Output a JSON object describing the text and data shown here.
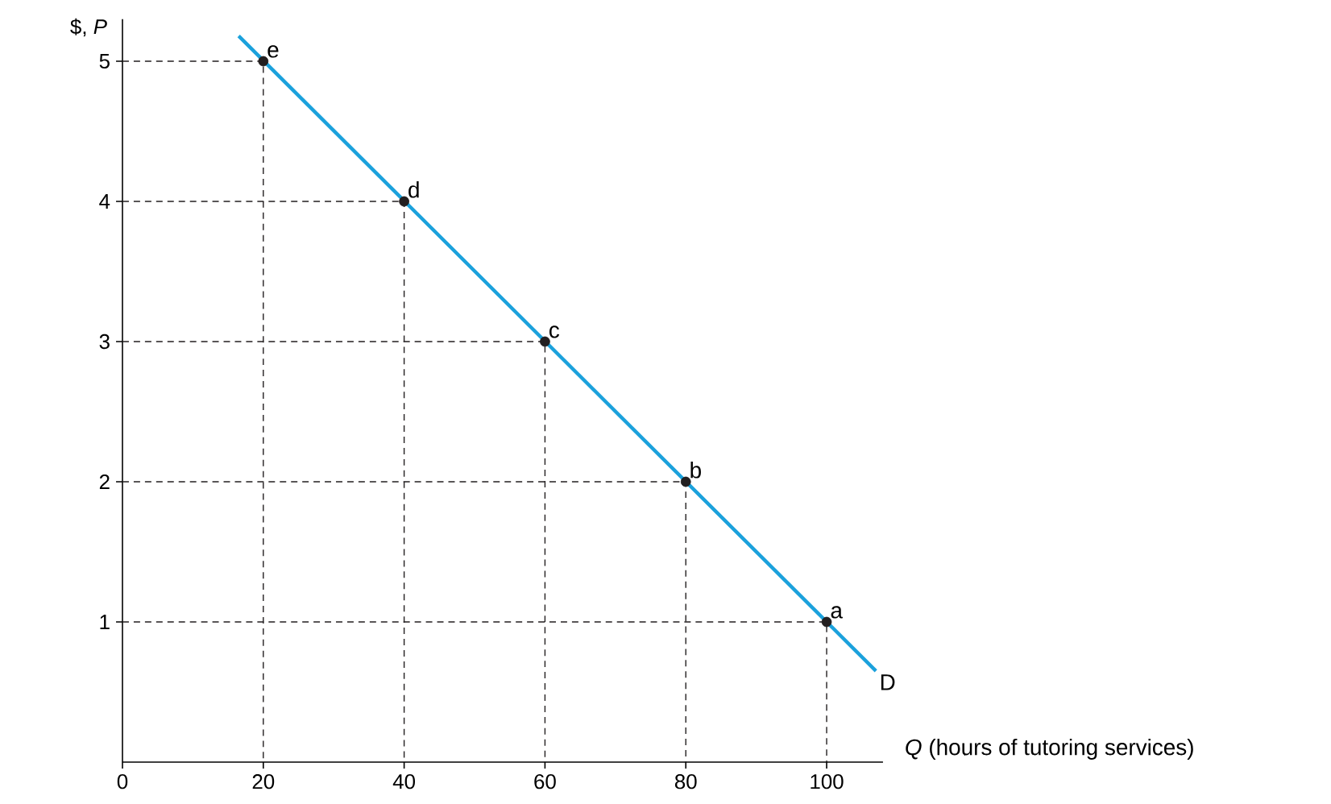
{
  "chart_data": {
    "type": "line",
    "xlabel": "*Q* (hours of tutoring services)",
    "ylabel": "$, *P*",
    "xlim": [
      0,
      108
    ],
    "ylim": [
      0,
      5.3
    ],
    "xticks": [
      0,
      20,
      40,
      60,
      80,
      100
    ],
    "yticks": [
      1,
      2,
      3,
      4,
      5
    ],
    "grid": false,
    "series": [
      {
        "color": "#231f20",
        "line_style": "dashed",
        "x": [
          0,
          20,
          20
        ],
        "values": [
          5,
          5,
          0
        ]
      },
      {
        "color": "#231f20",
        "line_style": "dashed",
        "x": [
          0,
          40,
          40
        ],
        "values": [
          4,
          4,
          0
        ]
      },
      {
        "color": "#231f20",
        "line_style": "dashed",
        "x": [
          0,
          60,
          60
        ],
        "values": [
          3,
          3,
          0
        ]
      },
      {
        "color": "#231f20",
        "line_style": "dashed",
        "x": [
          0,
          80,
          80
        ],
        "values": [
          2,
          2,
          0
        ]
      },
      {
        "color": "#231f20",
        "line_style": "dashed",
        "x": [
          0,
          100,
          100
        ],
        "values": [
          1,
          1,
          0
        ]
      },
      {
        "color": "#1ba1dc",
        "line_style": "solid",
        "x": [
          16.5,
          107
        ],
        "values": [
          5.18,
          0.65
        ]
      },
      {
        "type": "scatter",
        "color": "#231f20",
        "marker": "circle",
        "x": [
          20,
          40,
          60,
          80,
          100
        ],
        "values": [
          5,
          4,
          3,
          2,
          1
        ]
      }
    ],
    "annotations": [
      {
        "text": "e",
        "x": 20,
        "y": 5
      },
      {
        "text": "d",
        "x": 40,
        "y": 4
      },
      {
        "text": "c",
        "x": 60,
        "y": 3
      },
      {
        "text": "b",
        "x": 80,
        "y": 2
      },
      {
        "text": "a",
        "x": 100,
        "y": 1
      },
      {
        "text": "D",
        "x": 107,
        "y": 0.65
      }
    ]
  }
}
